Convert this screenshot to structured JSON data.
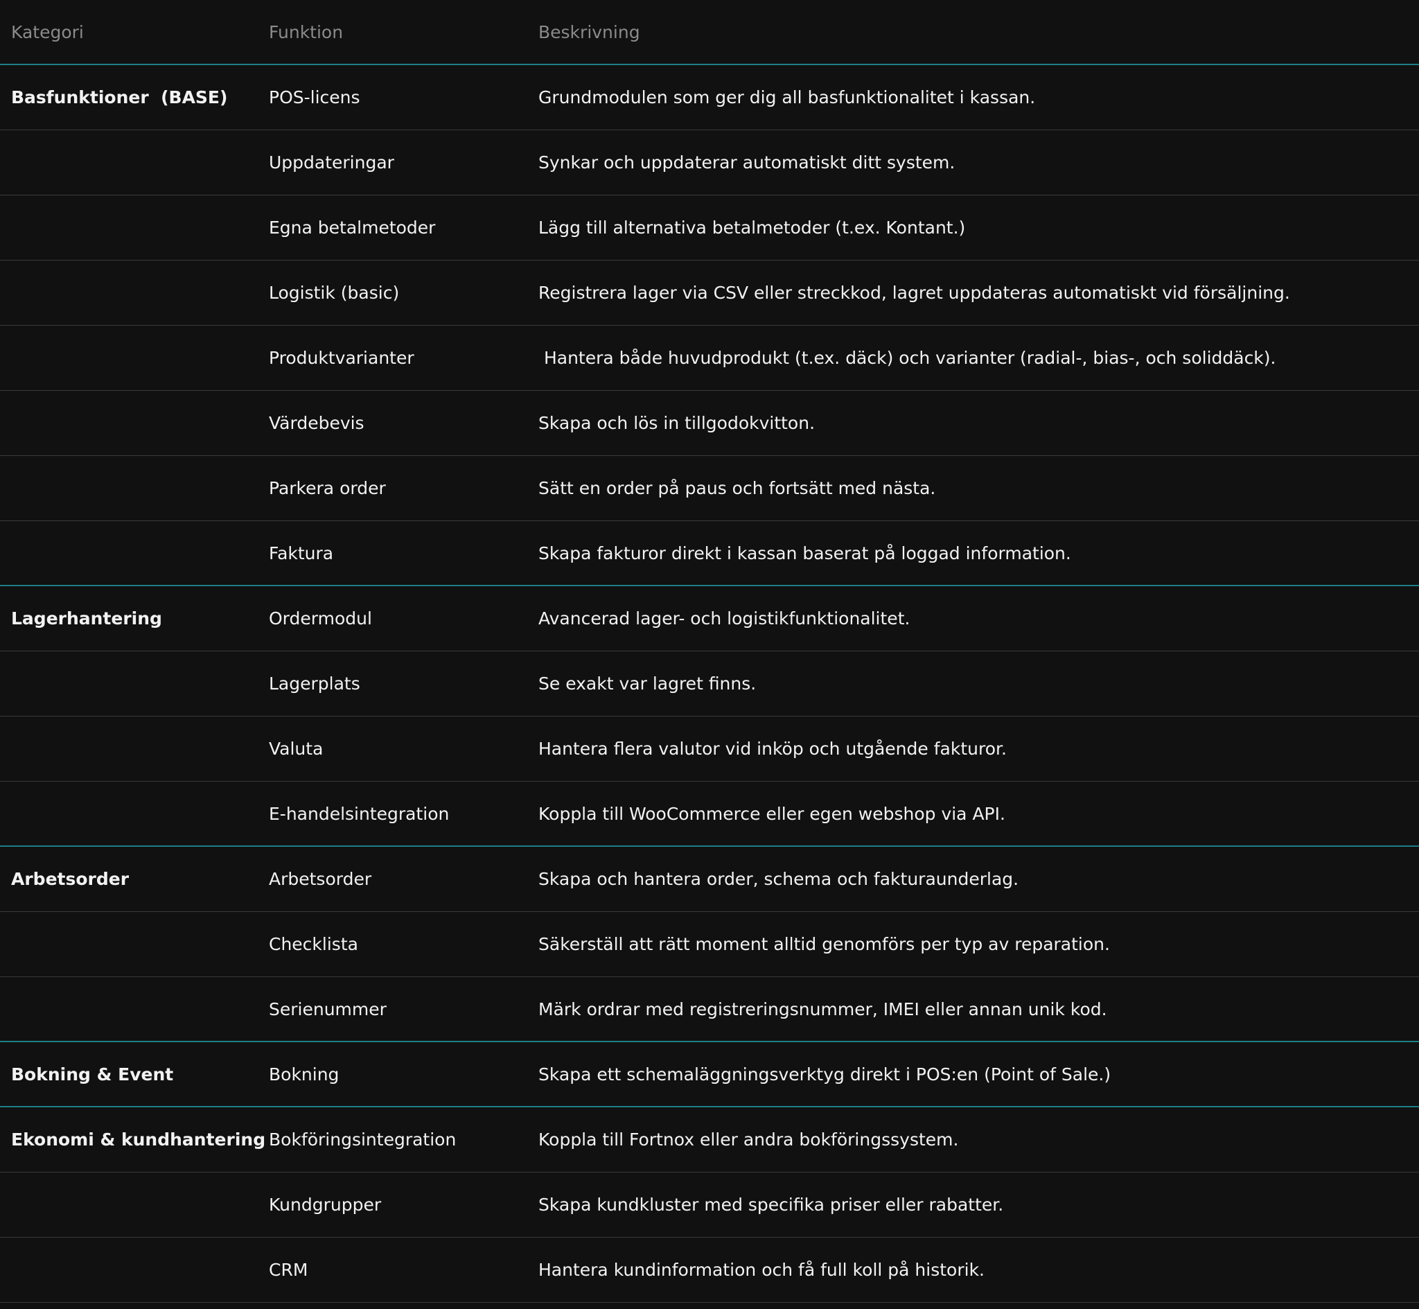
{
  "headers": {
    "category": "Kategori",
    "function": "Funktion",
    "description": "Beskrivning"
  },
  "accent_color": "#1d7f86",
  "rows": [
    {
      "category": "Basfunktioner  (BASE)",
      "function": "POS-licens",
      "description": "Grundmodulen som ger dig all basfunktionalitet i kassan."
    },
    {
      "category": "",
      "function": "Uppdateringar",
      "description": "Synkar och uppdaterar automatiskt ditt system."
    },
    {
      "category": "",
      "function": "Egna betalmetoder",
      "description": "Lägg till alternativa betalmetoder (t.ex. Kontant.)"
    },
    {
      "category": "",
      "function": "Logistik (basic)",
      "description": "Registrera lager via CSV eller streckkod, lagret uppdateras automatiskt vid försäljning."
    },
    {
      "category": "",
      "function": "Produktvarianter",
      "description": " Hantera både huvudprodukt (t.ex. däck) och varianter (radial-, bias-, och soliddäck)."
    },
    {
      "category": "",
      "function": "Värdebevis",
      "description": "Skapa och lös in tillgodokvitton."
    },
    {
      "category": "",
      "function": "Parkera order",
      "description": "Sätt en order på paus och fortsätt med nästa."
    },
    {
      "category": "",
      "function": "Faktura",
      "description": "Skapa fakturor direkt i kassan baserat på loggad information.",
      "group_end": true
    },
    {
      "category": "Lagerhantering",
      "function": "Ordermodul",
      "description": "Avancerad lager- och logistikfunktionalitet."
    },
    {
      "category": "",
      "function": "Lagerplats",
      "description": "Se exakt var lagret finns."
    },
    {
      "category": "",
      "function": "Valuta",
      "description": "Hantera flera valutor vid inköp och utgående fakturor."
    },
    {
      "category": "",
      "function": "E-handelsintegration",
      "description": "Koppla till WooCommerce eller egen webshop via API.",
      "group_end": true
    },
    {
      "category": "Arbetsorder",
      "function": "Arbetsorder",
      "description": "Skapa och hantera order, schema och fakturaunderlag."
    },
    {
      "category": "",
      "function": "Checklista",
      "description": "Säkerställ att rätt moment alltid genomförs per typ av reparation."
    },
    {
      "category": "",
      "function": "Serienummer",
      "description": "Märk ordrar med registreringsnummer, IMEI eller annan unik kod.",
      "group_end": true
    },
    {
      "category": "Bokning & Event",
      "function": "Bokning",
      "description": "Skapa ett schemaläggningsverktyg direkt i POS:en (Point of Sale.)",
      "group_end": true
    },
    {
      "category": "Ekonomi & kundhantering",
      "function": "Bokföringsintegration",
      "description": "Koppla till Fortnox eller andra bokföringssystem."
    },
    {
      "category": "",
      "function": "Kundgrupper",
      "description": "Skapa kundkluster med specifika priser eller rabatter."
    },
    {
      "category": "",
      "function": "CRM",
      "description": "Hantera kundinformation och få full koll på historik."
    }
  ]
}
